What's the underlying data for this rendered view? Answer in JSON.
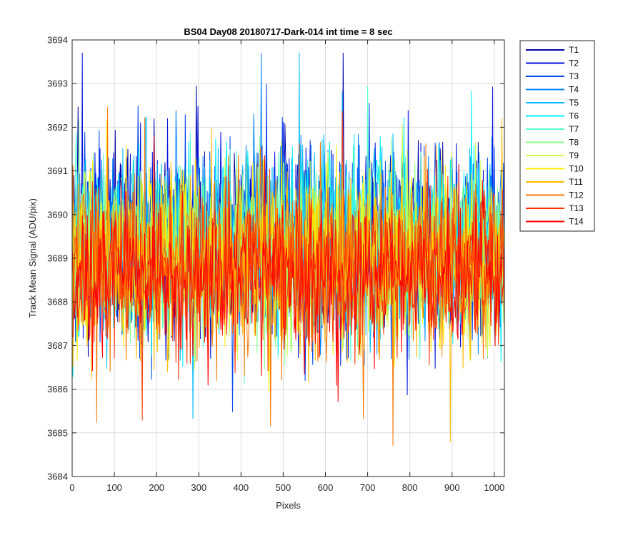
{
  "chart_data": {
    "type": "line",
    "title": "BS04 Day08 20180717-Dark-014 int time = 8 sec",
    "xlabel": "Pixels",
    "ylabel": "Track Mean Signal (ADU/pix)",
    "xlim": [
      0,
      1024
    ],
    "ylim": [
      3684,
      3694
    ],
    "xticks": [
      0,
      100,
      200,
      300,
      400,
      500,
      600,
      700,
      800,
      900,
      1000
    ],
    "yticks": [
      3684,
      3685,
      3686,
      3687,
      3688,
      3689,
      3690,
      3691,
      3692,
      3693,
      3694
    ],
    "grid": true,
    "legend": "outside-top-right",
    "series": [
      {
        "name": "T1",
        "color": "#0000AA",
        "mean": 3689.4,
        "spread": 1.1
      },
      {
        "name": "T2",
        "color": "#0011DD",
        "mean": 3689.4,
        "spread": 1.1
      },
      {
        "name": "T3",
        "color": "#0044EE",
        "mean": 3689.3,
        "spread": 1.1
      },
      {
        "name": "T4",
        "color": "#0088FF",
        "mean": 3689.3,
        "spread": 1.05
      },
      {
        "name": "T5",
        "color": "#00BBFF",
        "mean": 3689.3,
        "spread": 1.05
      },
      {
        "name": "T6",
        "color": "#00EEFF",
        "mean": 3689.3,
        "spread": 1.05
      },
      {
        "name": "T7",
        "color": "#55FFCC",
        "mean": 3689.2,
        "spread": 1.0
      },
      {
        "name": "T8",
        "color": "#88FF88",
        "mean": 3689.2,
        "spread": 1.0
      },
      {
        "name": "T9",
        "color": "#CCFF44",
        "mean": 3689.1,
        "spread": 1.0
      },
      {
        "name": "T10",
        "color": "#FFEE00",
        "mean": 3689.0,
        "spread": 1.0
      },
      {
        "name": "T11",
        "color": "#FFBB00",
        "mean": 3688.9,
        "spread": 1.0
      },
      {
        "name": "T12",
        "color": "#FF7700",
        "mean": 3688.8,
        "spread": 1.0
      },
      {
        "name": "T13",
        "color": "#FF3300",
        "mean": 3688.7,
        "spread": 0.95
      },
      {
        "name": "T14",
        "color": "#FF0000",
        "mean": 3688.6,
        "spread": 0.9
      }
    ]
  }
}
